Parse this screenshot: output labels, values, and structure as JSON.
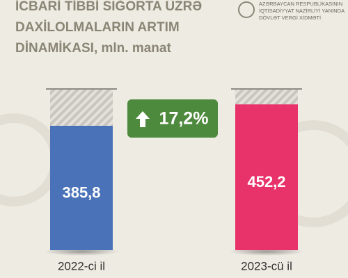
{
  "chart_data": {
    "type": "bar",
    "title_lines": [
      "İCBARİ TİBBİ SIĞORTA ÜZRƏ",
      "DAXİLOLMALARIN ARTIM",
      "DİNAMİKASI, mln. manat"
    ],
    "logo_lines": [
      "AZƏRBAYCAN RESPUBLİKASININ",
      "İQTİSADİYYAT NAZİRLİYİ YANINDA",
      "DÖVLƏT VERGİ XİDMƏTİ"
    ],
    "categories": [
      "2022-ci il",
      "2023-cü il"
    ],
    "values": [
      385.8,
      452.2
    ],
    "value_labels": [
      "385,8",
      "452,2"
    ],
    "colors": [
      "#4a72b8",
      "#e8336a"
    ],
    "ylim": [
      0,
      500
    ],
    "annotation": "17,2%",
    "annotation_color": "#4e8a3d"
  }
}
